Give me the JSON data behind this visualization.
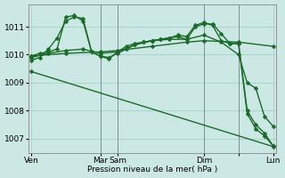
{
  "background_color": "#cce8e4",
  "grid_color": "#aad4cf",
  "line_color": "#1a6b2a",
  "xlabel": "Pression niveau de la mer( hPa )",
  "ylim": [
    1006.5,
    1011.8
  ],
  "yticks": [
    1007,
    1008,
    1009,
    1010,
    1011
  ],
  "xlim": [
    -0.3,
    28.3
  ],
  "x_tick_positions": [
    0,
    8,
    10,
    20,
    24,
    28
  ],
  "x_tick_labels": [
    "Ven",
    "Mar",
    "Sam",
    "Dim",
    "",
    "Lun"
  ],
  "vlines": [
    8,
    10,
    20,
    24
  ],
  "vline_color": "#444444",
  "vline_alpha": 0.45,
  "series": [
    {
      "x": [
        0,
        1,
        2,
        3,
        4,
        5,
        6,
        7,
        8,
        9,
        10,
        11,
        12,
        13,
        14,
        15,
        16,
        17,
        18,
        19,
        20,
        21,
        22,
        23,
        24,
        25,
        26,
        27,
        28
      ],
      "y": [
        1009.8,
        1009.9,
        1010.2,
        1010.6,
        1011.2,
        1011.35,
        1011.3,
        1010.1,
        1009.95,
        1009.9,
        1010.05,
        1010.2,
        1010.35,
        1010.45,
        1010.5,
        1010.55,
        1010.6,
        1010.65,
        1010.55,
        1011.0,
        1011.1,
        1011.1,
        1010.75,
        1010.4,
        1010.4,
        1007.9,
        1007.35,
        1007.1,
        1006.75
      ],
      "marker": "D",
      "markersize": 2.5,
      "linewidth": 1.0
    },
    {
      "x": [
        0,
        1,
        2,
        3,
        4,
        5,
        6,
        7,
        8,
        9,
        10,
        11,
        12,
        13,
        14,
        15,
        16,
        17,
        18,
        19,
        20,
        21,
        22,
        23,
        24,
        25,
        26,
        27,
        28
      ],
      "y": [
        1009.95,
        1010.05,
        1010.1,
        1010.2,
        1011.35,
        1011.4,
        1011.2,
        1010.1,
        1009.95,
        1009.85,
        1010.1,
        1010.3,
        1010.4,
        1010.45,
        1010.5,
        1010.55,
        1010.6,
        1010.7,
        1010.65,
        1011.05,
        1011.15,
        1011.05,
        1010.5,
        1010.4,
        1010.4,
        1008.0,
        1007.5,
        1007.2,
        1006.75
      ],
      "marker": "D",
      "markersize": 2.5,
      "linewidth": 1.0
    },
    {
      "x": [
        0,
        4,
        8,
        10,
        14,
        18,
        20,
        24,
        28
      ],
      "y": [
        1009.95,
        1010.05,
        1010.1,
        1010.15,
        1010.3,
        1010.45,
        1010.5,
        1010.45,
        1010.3
      ],
      "marker": "D",
      "markersize": 2.5,
      "linewidth": 1.0
    },
    {
      "x": [
        0,
        28
      ],
      "y": [
        1009.4,
        1006.72
      ],
      "marker": "D",
      "markersize": 2.5,
      "linewidth": 1.0
    },
    {
      "x": [
        0,
        2,
        4,
        6,
        8,
        10,
        12,
        14,
        16,
        18,
        20,
        22,
        24,
        25,
        26,
        27,
        28
      ],
      "y": [
        1009.9,
        1010.05,
        1010.15,
        1010.2,
        1010.05,
        1010.1,
        1010.35,
        1010.5,
        1010.55,
        1010.55,
        1010.7,
        1010.45,
        1010.0,
        1009.0,
        1008.8,
        1007.8,
        1007.45
      ],
      "marker": "D",
      "markersize": 2.5,
      "linewidth": 1.0
    }
  ]
}
